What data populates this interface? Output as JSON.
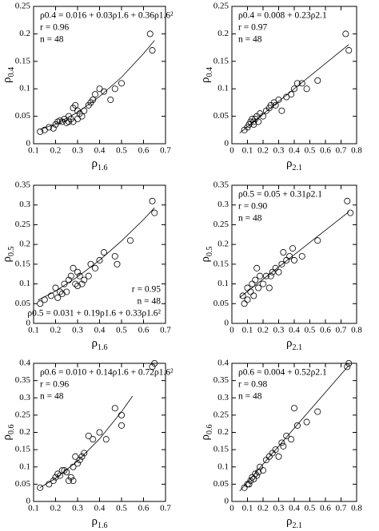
{
  "chart_data": [
    {
      "type": "scatter",
      "x_label": [
        "ρ",
        "1.6"
      ],
      "y_label": [
        "ρ",
        "0.4"
      ],
      "annotation_corner": "top-left",
      "annotations": [
        "ρ0.4 = 0.016 + 0.03ρ1.6 + 0.36ρ1.6²",
        "r = 0.96",
        "n = 48"
      ],
      "xlim": [
        0.1,
        0.7
      ],
      "xticks": [
        0.1,
        0.2,
        0.3,
        0.4,
        0.5,
        0.6,
        0.7
      ],
      "ylim": [
        0,
        0.25
      ],
      "yticks": [
        0,
        0.05,
        0.1,
        0.15,
        0.2,
        0.25
      ],
      "color": "#000000",
      "x": [
        0.13,
        0.15,
        0.17,
        0.19,
        0.2,
        0.21,
        0.22,
        0.23,
        0.24,
        0.25,
        0.26,
        0.27,
        0.28,
        0.29,
        0.3,
        0.31,
        0.32,
        0.33,
        0.35,
        0.36,
        0.37,
        0.38,
        0.4,
        0.42,
        0.45,
        0.47,
        0.5,
        0.63,
        0.64,
        0.28,
        0.3,
        0.26
      ],
      "values": [
        0.022,
        0.025,
        0.03,
        0.028,
        0.035,
        0.04,
        0.042,
        0.04,
        0.045,
        0.038,
        0.05,
        0.045,
        0.065,
        0.07,
        0.06,
        0.055,
        0.05,
        0.06,
        0.07,
        0.075,
        0.08,
        0.09,
        0.1,
        0.095,
        0.08,
        0.1,
        0.11,
        0.2,
        0.17,
        0.04,
        0.045,
        0.04
      ],
      "fit": {
        "x": [
          0.13,
          0.2,
          0.3,
          0.4,
          0.5,
          0.6,
          0.65
        ],
        "values": [
          0.026,
          0.036,
          0.057,
          0.086,
          0.121,
          0.164,
          0.188
        ]
      }
    },
    {
      "type": "scatter",
      "x_label": [
        "ρ",
        "2.1"
      ],
      "y_label": [
        "ρ",
        "0.4"
      ],
      "annotation_corner": "top-left",
      "annotations": [
        "ρ0.4 = 0.008 + 0.23ρ2.1",
        "r = 0.97",
        "n = 48"
      ],
      "xlim": [
        0,
        0.8
      ],
      "xticks": [
        0,
        0.1,
        0.2,
        0.3,
        0.4,
        0.5,
        0.6,
        0.7,
        0.8
      ],
      "ylim": [
        0,
        0.25
      ],
      "yticks": [
        0,
        0.05,
        0.1,
        0.15,
        0.2,
        0.25
      ],
      "color": "#000000",
      "x": [
        0.08,
        0.1,
        0.12,
        0.13,
        0.14,
        0.15,
        0.16,
        0.17,
        0.18,
        0.2,
        0.22,
        0.24,
        0.25,
        0.27,
        0.3,
        0.32,
        0.35,
        0.38,
        0.4,
        0.42,
        0.45,
        0.48,
        0.55,
        0.73,
        0.75,
        0.14,
        0.11,
        0.28
      ],
      "values": [
        0.025,
        0.03,
        0.04,
        0.045,
        0.04,
        0.045,
        0.05,
        0.04,
        0.055,
        0.05,
        0.06,
        0.065,
        0.07,
        0.075,
        0.08,
        0.06,
        0.085,
        0.09,
        0.1,
        0.11,
        0.11,
        0.1,
        0.115,
        0.2,
        0.17,
        0.035,
        0.035,
        0.07
      ],
      "fit": {
        "x": [
          0.05,
          0.75
        ],
        "values": [
          0.0195,
          0.1805
        ]
      }
    },
    {
      "type": "scatter",
      "x_label": [
        "ρ",
        "1.6"
      ],
      "y_label": [
        "ρ",
        "0.5"
      ],
      "annotation_corner": "bottom-right",
      "annotations": [
        "r = 0.95",
        "n = 48",
        "ρ0.5 = 0.031 + 0.19ρ1.6 + 0.33ρ1.6²"
      ],
      "xlim": [
        0.1,
        0.7
      ],
      "xticks": [
        0.1,
        0.2,
        0.3,
        0.4,
        0.5,
        0.6,
        0.7
      ],
      "ylim": [
        0,
        0.35
      ],
      "yticks": [
        0,
        0.05,
        0.1,
        0.15,
        0.2,
        0.25,
        0.3,
        0.35
      ],
      "color": "#000000",
      "x": [
        0.13,
        0.15,
        0.18,
        0.2,
        0.21,
        0.22,
        0.23,
        0.25,
        0.26,
        0.27,
        0.28,
        0.29,
        0.3,
        0.31,
        0.32,
        0.33,
        0.35,
        0.36,
        0.38,
        0.4,
        0.42,
        0.47,
        0.48,
        0.54,
        0.64,
        0.65,
        0.24,
        0.3
      ],
      "values": [
        0.05,
        0.06,
        0.07,
        0.09,
        0.065,
        0.08,
        0.075,
        0.08,
        0.11,
        0.12,
        0.14,
        0.1,
        0.13,
        0.12,
        0.1,
        0.11,
        0.12,
        0.15,
        0.14,
        0.16,
        0.18,
        0.17,
        0.15,
        0.21,
        0.31,
        0.28,
        0.1,
        0.095
      ],
      "fit": {
        "x": [
          0.12,
          0.2,
          0.3,
          0.4,
          0.5,
          0.6,
          0.65
        ],
        "values": [
          0.0586,
          0.082,
          0.118,
          0.16,
          0.209,
          0.263,
          0.293
        ]
      }
    },
    {
      "type": "scatter",
      "x_label": [
        "ρ",
        "2.1"
      ],
      "y_label": [
        "ρ",
        "0.5"
      ],
      "annotation_corner": "top-left",
      "annotations": [
        "ρ0.5 = 0.05 + 0.31ρ2.1",
        "r = 0.90",
        "n = 48"
      ],
      "xlim": [
        0,
        0.8
      ],
      "xticks": [
        0,
        0.1,
        0.2,
        0.3,
        0.4,
        0.5,
        0.6,
        0.7,
        0.8
      ],
      "ylim": [
        0,
        0.35
      ],
      "yticks": [
        0,
        0.05,
        0.1,
        0.15,
        0.2,
        0.25,
        0.3,
        0.35
      ],
      "color": "#000000",
      "x": [
        0.07,
        0.08,
        0.1,
        0.12,
        0.13,
        0.14,
        0.15,
        0.16,
        0.17,
        0.18,
        0.2,
        0.22,
        0.24,
        0.26,
        0.28,
        0.3,
        0.32,
        0.35,
        0.37,
        0.39,
        0.4,
        0.45,
        0.55,
        0.74,
        0.76,
        0.1,
        0.25,
        0.33
      ],
      "values": [
        0.07,
        0.05,
        0.06,
        0.08,
        0.1,
        0.07,
        0.11,
        0.14,
        0.09,
        0.12,
        0.1,
        0.12,
        0.09,
        0.13,
        0.14,
        0.13,
        0.15,
        0.16,
        0.17,
        0.19,
        0.16,
        0.17,
        0.21,
        0.31,
        0.28,
        0.09,
        0.12,
        0.18
      ],
      "fit": {
        "x": [
          0.05,
          0.75
        ],
        "values": [
          0.0655,
          0.2825
        ]
      }
    },
    {
      "type": "scatter",
      "x_label": [
        "ρ",
        "1.6"
      ],
      "y_label": [
        "ρ",
        "0.6"
      ],
      "annotation_corner": "top-left",
      "annotations": [
        "ρ0.6 = 0.010 + 0.14ρ1.6 + 0.72ρ1.6²",
        "r = 0.96",
        "n = 48"
      ],
      "xlim": [
        0.1,
        0.7
      ],
      "xticks": [
        0.1,
        0.2,
        0.3,
        0.4,
        0.5,
        0.6,
        0.7
      ],
      "ylim": [
        0,
        0.4
      ],
      "yticks": [
        0,
        0.05,
        0.1,
        0.15,
        0.2,
        0.25,
        0.3,
        0.35,
        0.4
      ],
      "color": "#000000",
      "x": [
        0.13,
        0.17,
        0.19,
        0.2,
        0.21,
        0.22,
        0.24,
        0.25,
        0.26,
        0.27,
        0.28,
        0.29,
        0.3,
        0.31,
        0.32,
        0.33,
        0.35,
        0.37,
        0.4,
        0.43,
        0.47,
        0.5,
        0.5,
        0.64,
        0.65,
        0.28,
        0.23
      ],
      "values": [
        0.04,
        0.05,
        0.06,
        0.07,
        0.08,
        0.075,
        0.09,
        0.085,
        0.06,
        0.07,
        0.1,
        0.13,
        0.11,
        0.12,
        0.13,
        0.14,
        0.19,
        0.18,
        0.2,
        0.18,
        0.27,
        0.22,
        0.25,
        0.39,
        0.4,
        0.06,
        0.09
      ],
      "fit": {
        "x": [
          0.13,
          0.2,
          0.3,
          0.4,
          0.5,
          0.55
        ],
        "values": [
          0.0404,
          0.0668,
          0.117,
          0.181,
          0.26,
          0.305
        ]
      }
    },
    {
      "type": "scatter",
      "x_label": [
        "ρ",
        "2.1"
      ],
      "y_label": [
        "ρ",
        "0.6"
      ],
      "annotation_corner": "top-left",
      "annotations": [
        "ρ0.6 = 0.004 + 0.52ρ2.1",
        "r = 0.98",
        "n = 48"
      ],
      "xlim": [
        0,
        0.8
      ],
      "xticks": [
        0,
        0.1,
        0.2,
        0.3,
        0.4,
        0.5,
        0.6,
        0.7,
        0.8
      ],
      "ylim": [
        0,
        0.4
      ],
      "yticks": [
        0,
        0.05,
        0.1,
        0.15,
        0.2,
        0.25,
        0.3,
        0.35,
        0.4
      ],
      "color": "#000000",
      "x": [
        0.08,
        0.1,
        0.12,
        0.13,
        0.14,
        0.15,
        0.16,
        0.17,
        0.18,
        0.2,
        0.22,
        0.24,
        0.26,
        0.28,
        0.3,
        0.32,
        0.35,
        0.38,
        0.4,
        0.42,
        0.48,
        0.55,
        0.74,
        0.75,
        0.11,
        0.33
      ],
      "values": [
        0.04,
        0.05,
        0.06,
        0.07,
        0.065,
        0.08,
        0.075,
        0.085,
        0.1,
        0.09,
        0.12,
        0.13,
        0.14,
        0.15,
        0.13,
        0.17,
        0.19,
        0.18,
        0.27,
        0.22,
        0.23,
        0.26,
        0.39,
        0.4,
        0.05,
        0.16
      ],
      "fit": {
        "x": [
          0.05,
          0.75
        ],
        "values": [
          0.03,
          0.394
        ]
      }
    }
  ]
}
